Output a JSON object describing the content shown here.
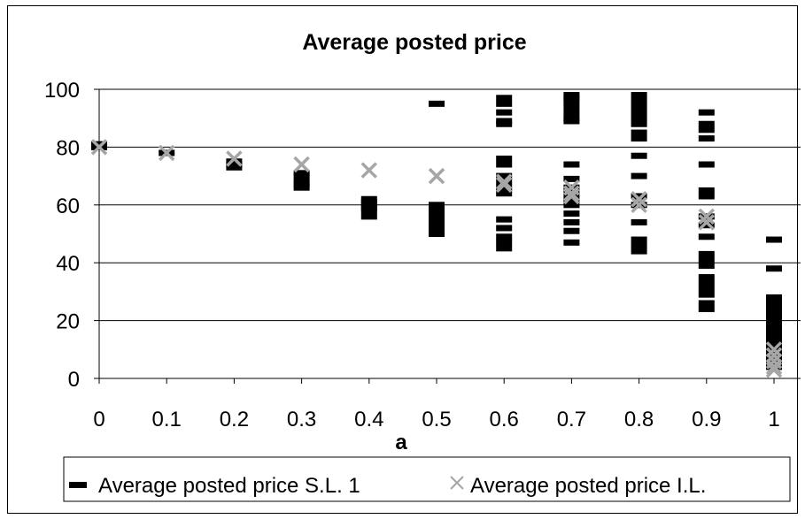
{
  "chart_data": {
    "type": "scatter",
    "title": "Average posted price",
    "xlabel": "a",
    "ylabel": "",
    "x_ticks": [
      "0",
      "0.1",
      "0.2",
      "0.3",
      "0.4",
      "0.5",
      "0.6",
      "0.7",
      "0.8",
      "0.9",
      "1"
    ],
    "y_ticks": [
      "0",
      "20",
      "40",
      "60",
      "80",
      "100"
    ],
    "ylim": [
      0,
      100
    ],
    "xlim": [
      0,
      1
    ],
    "grid": "horizontal",
    "legend_position": "bottom",
    "series": [
      {
        "name": "Average posted price S.L. 1",
        "marker": "dash",
        "color": "#000000",
        "points": [
          [
            0,
            81
          ],
          [
            0,
            80
          ],
          [
            0.1,
            78
          ],
          [
            0.2,
            73
          ],
          [
            0.2,
            74
          ],
          [
            0.2,
            75
          ],
          [
            0.3,
            66
          ],
          [
            0.3,
            67
          ],
          [
            0.3,
            68
          ],
          [
            0.3,
            70
          ],
          [
            0.3,
            71
          ],
          [
            0.4,
            56
          ],
          [
            0.4,
            58
          ],
          [
            0.4,
            59
          ],
          [
            0.4,
            60
          ],
          [
            0.4,
            61
          ],
          [
            0.4,
            62
          ],
          [
            0.5,
            95
          ],
          [
            0.5,
            50
          ],
          [
            0.5,
            52
          ],
          [
            0.5,
            54
          ],
          [
            0.5,
            56
          ],
          [
            0.5,
            58
          ],
          [
            0.5,
            60
          ],
          [
            0.6,
            97
          ],
          [
            0.6,
            95
          ],
          [
            0.6,
            92
          ],
          [
            0.6,
            89
          ],
          [
            0.6,
            88
          ],
          [
            0.6,
            76
          ],
          [
            0.6,
            74
          ],
          [
            0.6,
            70
          ],
          [
            0.6,
            68
          ],
          [
            0.6,
            66
          ],
          [
            0.6,
            64
          ],
          [
            0.6,
            55
          ],
          [
            0.6,
            52
          ],
          [
            0.6,
            49
          ],
          [
            0.6,
            47
          ],
          [
            0.6,
            45
          ],
          [
            0.7,
            98
          ],
          [
            0.7,
            97
          ],
          [
            0.7,
            96
          ],
          [
            0.7,
            94
          ],
          [
            0.7,
            92
          ],
          [
            0.7,
            90
          ],
          [
            0.7,
            89
          ],
          [
            0.7,
            74
          ],
          [
            0.7,
            69
          ],
          [
            0.7,
            66
          ],
          [
            0.7,
            64
          ],
          [
            0.7,
            62
          ],
          [
            0.7,
            60
          ],
          [
            0.7,
            57
          ],
          [
            0.7,
            54
          ],
          [
            0.7,
            51
          ],
          [
            0.7,
            47
          ],
          [
            0.8,
            98
          ],
          [
            0.8,
            96
          ],
          [
            0.8,
            94
          ],
          [
            0.8,
            92
          ],
          [
            0.8,
            90
          ],
          [
            0.8,
            88
          ],
          [
            0.8,
            85
          ],
          [
            0.8,
            83
          ],
          [
            0.8,
            77
          ],
          [
            0.8,
            70
          ],
          [
            0.8,
            63
          ],
          [
            0.8,
            60
          ],
          [
            0.8,
            54
          ],
          [
            0.8,
            48
          ],
          [
            0.8,
            46
          ],
          [
            0.8,
            44
          ],
          [
            0.9,
            92
          ],
          [
            0.9,
            88
          ],
          [
            0.9,
            86
          ],
          [
            0.9,
            83
          ],
          [
            0.9,
            74
          ],
          [
            0.9,
            65
          ],
          [
            0.9,
            63
          ],
          [
            0.9,
            56
          ],
          [
            0.9,
            53
          ],
          [
            0.9,
            49
          ],
          [
            0.9,
            43
          ],
          [
            0.9,
            41
          ],
          [
            0.9,
            39
          ],
          [
            0.9,
            35
          ],
          [
            0.9,
            33
          ],
          [
            0.9,
            31
          ],
          [
            0.9,
            29
          ],
          [
            0.9,
            26
          ],
          [
            0.9,
            24
          ],
          [
            1,
            48
          ],
          [
            1,
            38
          ],
          [
            1,
            28
          ],
          [
            1,
            26
          ],
          [
            1,
            24
          ],
          [
            1,
            22
          ],
          [
            1,
            21
          ],
          [
            1,
            20
          ],
          [
            1,
            19
          ],
          [
            1,
            18
          ],
          [
            1,
            16
          ],
          [
            1,
            14
          ],
          [
            1,
            12
          ],
          [
            1,
            10
          ],
          [
            1,
            8
          ],
          [
            1,
            6
          ],
          [
            1,
            5
          ],
          [
            1,
            4
          ]
        ]
      },
      {
        "name": "Average posted price I.L.",
        "marker": "x",
        "color": "#a6a6a6",
        "points": [
          [
            0,
            80
          ],
          [
            0.1,
            78
          ],
          [
            0.2,
            76
          ],
          [
            0.3,
            74
          ],
          [
            0.4,
            72
          ],
          [
            0.5,
            70
          ],
          [
            0.6,
            68
          ],
          [
            0.6,
            67
          ],
          [
            0.7,
            66
          ],
          [
            0.7,
            64
          ],
          [
            0.7,
            63
          ],
          [
            0.8,
            62
          ],
          [
            0.8,
            60
          ],
          [
            0.9,
            56
          ],
          [
            0.9,
            54
          ],
          [
            1,
            10
          ],
          [
            1,
            8
          ],
          [
            1,
            6
          ],
          [
            1,
            4
          ],
          [
            1,
            3
          ]
        ]
      }
    ]
  }
}
